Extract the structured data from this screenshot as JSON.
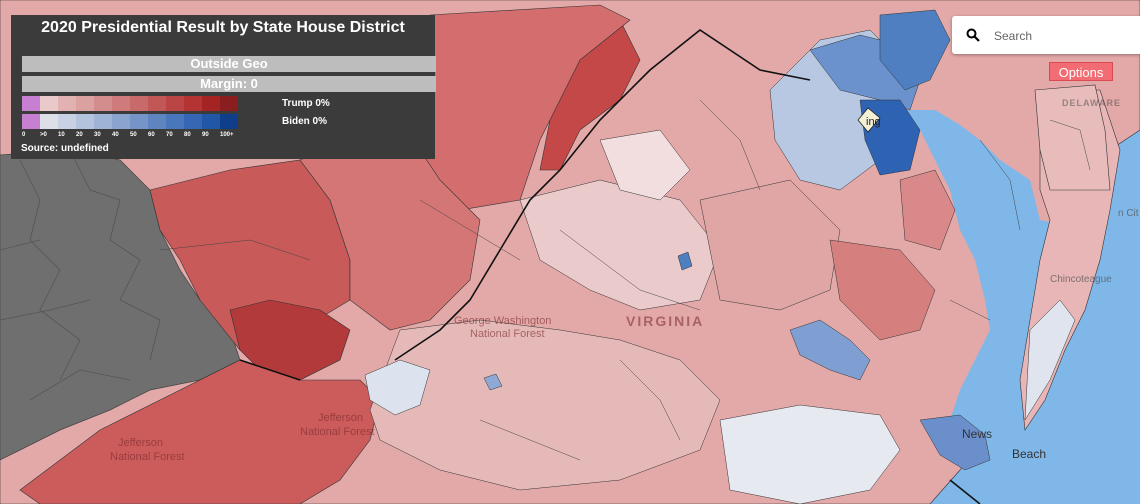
{
  "legend": {
    "title": "2020 Presidential Result by State House District",
    "region_label": "Outside Geo",
    "margin_label": "Margin: 0",
    "trump_label": "Trump 0%",
    "biden_label": "Biden 0%",
    "ticks": [
      "0",
      ">0",
      "10",
      "20",
      "30",
      "40",
      "50",
      "60",
      "70",
      "80",
      "90",
      "100+"
    ],
    "source": "Source: undefined",
    "trump_colors": [
      "#c77fd1",
      "#e9c9c9",
      "#e2b2b2",
      "#dba0a0",
      "#d48d8d",
      "#cf7b7b",
      "#c86a6a",
      "#c15757",
      "#bb4444",
      "#b43434",
      "#a42323",
      "#8a1d1d"
    ],
    "biden_colors": [
      "#c77fd1",
      "#dcdfe8",
      "#c7d1e3",
      "#b3c3dd",
      "#9fb3d6",
      "#8aa4cf",
      "#7595c8",
      "#5f85c1",
      "#4a76bb",
      "#3567b5",
      "#2157a6",
      "#0f3f8a"
    ]
  },
  "search": {
    "placeholder": "Search",
    "icon": "magnifier-icon"
  },
  "options": {
    "label": "Options"
  },
  "map_labels": {
    "state": "VIRGINIA",
    "forest1": "George Washington",
    "forest1b": "National Forest",
    "forest2": "Jefferson",
    "forest2b": "National Forest",
    "forest3": "Jefferson",
    "forest3b": "National Forest",
    "news": "News",
    "beach": "Beach",
    "delaware": "DELAWARE",
    "chincoteague": "Chincoteague",
    "ocean_city": "n Cit",
    "dc_short": "ing"
  },
  "colors": {
    "water": "#7fb7e8",
    "outside": "#6f6f6f",
    "accent": "#f26d73"
  }
}
